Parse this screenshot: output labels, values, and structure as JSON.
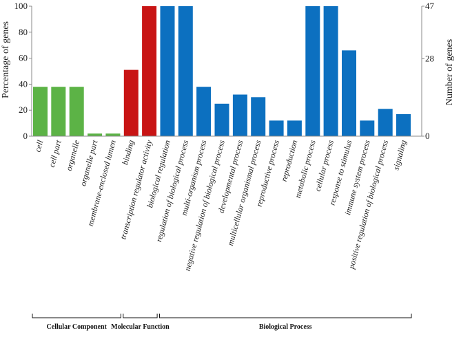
{
  "chart_data": {
    "type": "bar",
    "title": "",
    "xlabel": "",
    "ylabel_left": "Percentage of genes",
    "ylabel_right": "Number of genes",
    "ylim": [
      0,
      100
    ],
    "left_ticks": [
      "0",
      "20",
      "40",
      "60",
      "80",
      "100"
    ],
    "right_ticks": [
      "0",
      "28",
      "47"
    ],
    "categories": [
      "cell",
      "cell part",
      "organelle",
      "organelle part",
      "membrane-enclosed lumen",
      "binding",
      "transcription regulator activity",
      "biological regulation",
      "regulation of biological process",
      "multi-organism process",
      "negative regulation of biological process",
      "developmental process",
      "multicellular organismal process",
      "reproductive process",
      "reproduction",
      "metabolic process",
      "cellular process",
      "response to stimulus",
      "immune system process",
      "positive regulation of biological process",
      "signaling"
    ],
    "values": [
      38,
      38,
      38,
      2,
      2,
      51,
      100,
      100,
      100,
      38,
      25,
      32,
      30,
      12,
      12,
      100,
      100,
      66,
      12,
      21,
      17
    ],
    "groups": [
      {
        "name": "Cellular Component",
        "start": 0,
        "end": 4,
        "color": "#5cb346"
      },
      {
        "name": "Molecular Function",
        "start": 5,
        "end": 6,
        "color": "#c81414"
      },
      {
        "name": "Biological Process",
        "start": 7,
        "end": 20,
        "color": "#0c70c0"
      }
    ]
  }
}
